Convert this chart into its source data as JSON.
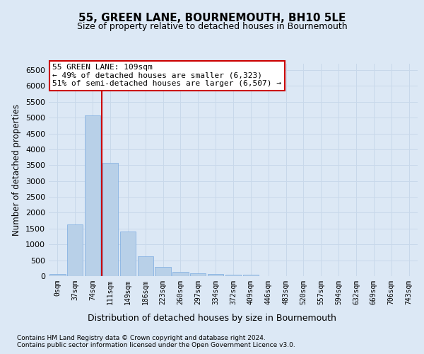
{
  "title": "55, GREEN LANE, BOURNEMOUTH, BH10 5LE",
  "subtitle": "Size of property relative to detached houses in Bournemouth",
  "xlabel": "Distribution of detached houses by size in Bournemouth",
  "ylabel": "Number of detached properties",
  "footer_line1": "Contains HM Land Registry data © Crown copyright and database right 2024.",
  "footer_line2": "Contains public sector information licensed under the Open Government Licence v3.0.",
  "bar_labels": [
    "0sqm",
    "37sqm",
    "74sqm",
    "111sqm",
    "149sqm",
    "186sqm",
    "223sqm",
    "260sqm",
    "297sqm",
    "334sqm",
    "372sqm",
    "409sqm",
    "446sqm",
    "483sqm",
    "520sqm",
    "557sqm",
    "594sqm",
    "632sqm",
    "669sqm",
    "706sqm",
    "743sqm"
  ],
  "bar_values": [
    75,
    1625,
    5075,
    3575,
    1400,
    620,
    290,
    140,
    100,
    70,
    55,
    50,
    0,
    0,
    0,
    0,
    0,
    0,
    0,
    0,
    0
  ],
  "bar_color": "#b8d0e8",
  "bar_edge_color": "#7aabe0",
  "grid_color": "#c8d8ea",
  "vline_color": "#cc0000",
  "annotation_text": "55 GREEN LANE: 109sqm\n← 49% of detached houses are smaller (6,323)\n51% of semi-detached houses are larger (6,507) →",
  "annotation_box_color": "#ffffff",
  "annotation_box_edge": "#cc0000",
  "ylim": [
    0,
    6700
  ],
  "yticks": [
    0,
    500,
    1000,
    1500,
    2000,
    2500,
    3000,
    3500,
    4000,
    4500,
    5000,
    5500,
    6000,
    6500
  ],
  "background_color": "#dce8f5",
  "plot_bg_color": "#dce8f5",
  "title_fontsize": 11,
  "subtitle_fontsize": 9,
  "ylabel_fontsize": 8.5,
  "xlabel_fontsize": 9,
  "tick_fontsize": 8
}
